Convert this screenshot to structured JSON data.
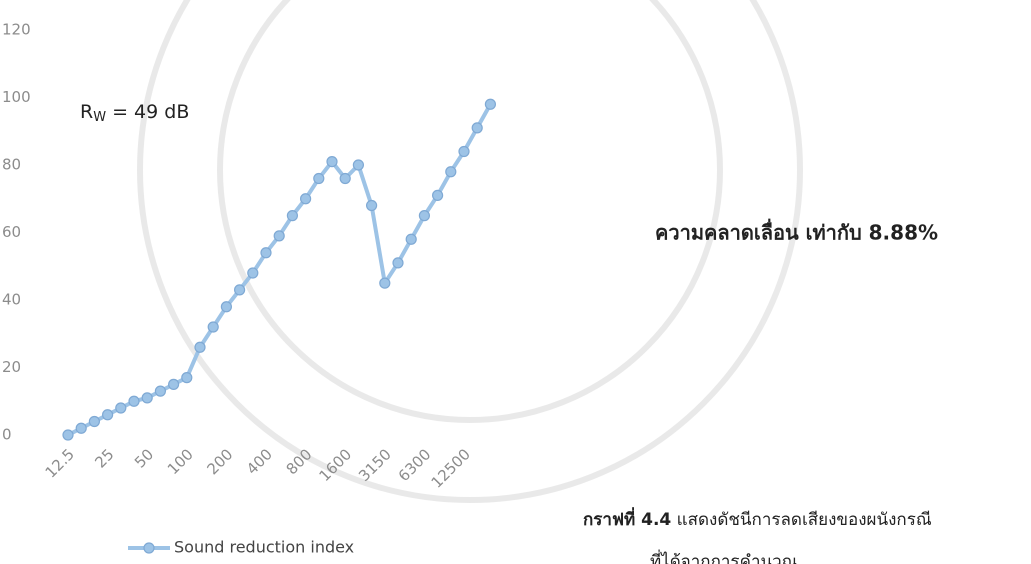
{
  "chart_data": {
    "type": "line",
    "categories": [
      "12.5",
      null,
      null,
      "25",
      null,
      null,
      "50",
      null,
      null,
      "100",
      null,
      null,
      "200",
      null,
      null,
      "400",
      null,
      null,
      "800",
      null,
      null,
      "1600",
      null,
      null,
      "3150",
      null,
      null,
      "6300",
      null,
      null,
      "12500",
      null,
      null
    ],
    "series": [
      {
        "name": "Sound reduction index",
        "color": "#9dc3e6",
        "values": [
          0,
          2,
          4,
          6,
          8,
          10,
          11,
          13,
          15,
          17,
          26,
          32,
          38,
          43,
          48,
          54,
          59,
          65,
          70,
          76,
          81,
          76,
          80,
          68,
          45,
          51,
          58,
          65,
          71,
          78,
          84,
          91,
          98
        ]
      }
    ],
    "ylim": [
      0,
      120
    ],
    "yticks": [
      0,
      20,
      40,
      60,
      80,
      100,
      120
    ],
    "grid": false,
    "legend": "bottom",
    "annotations": {
      "rw": {
        "symbol": "R",
        "subscript": "W",
        "text": " = 49 dB"
      },
      "error": "ความคลาดเลื่อน เท่ากับ 8.88%",
      "caption_label": "กราฟที่ 4.4",
      "caption_text": " แสดงดัชนีการลดเสียงของผนังกรณี",
      "caption_line2": "ที่ได้จากการคำนวณ"
    }
  }
}
